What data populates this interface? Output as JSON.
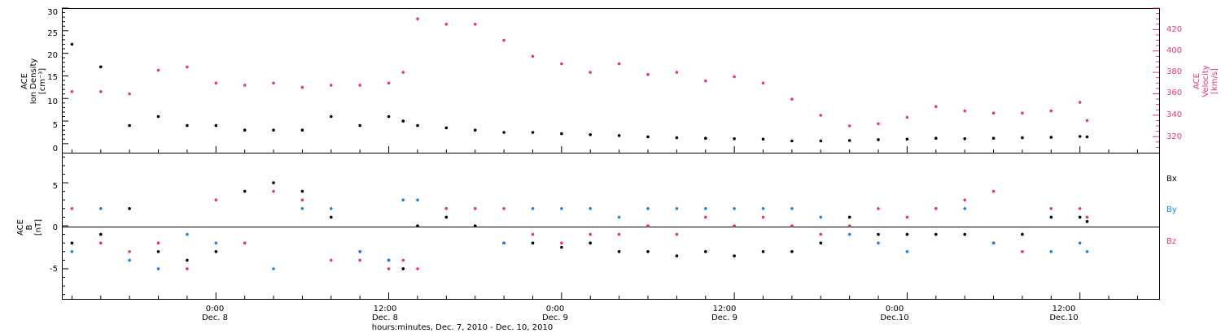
{
  "colors": {
    "black": "#000000",
    "pink": "#e8386a",
    "blue": "#1a86e0"
  },
  "x_axis": {
    "ticks": [
      {
        "time": "0:00",
        "date": "Dec. 8",
        "hours": 24
      },
      {
        "time": "12:00",
        "date": "Dec. 8",
        "hours": 36
      },
      {
        "time": "0:00",
        "date": "Dec. 9",
        "hours": 48
      },
      {
        "time": "12:00",
        "date": "Dec. 9",
        "hours": 60
      },
      {
        "time": "0:00",
        "date": "Dec.10",
        "hours": 72
      },
      {
        "time": "12:00",
        "date": "Dec.10",
        "hours": 84
      }
    ],
    "title": "hours:minutes, Dec. 7, 2010 - Dec. 10, 2010",
    "range_hours": [
      13.3,
      89.5
    ]
  },
  "panel1": {
    "left_label": [
      "ACE",
      "Ion Density",
      "[cm⁻³]"
    ],
    "right_label": [
      "ACE",
      "Velocity",
      "[km/s]"
    ],
    "left_ticks": [
      "30",
      "25",
      "20",
      "15",
      "10",
      "5",
      "0"
    ],
    "right_ticks": [
      "420",
      "400",
      "380",
      "360",
      "340",
      "320"
    ]
  },
  "panel2": {
    "left_label": [
      "ACE",
      "B",
      "[nT]"
    ],
    "left_ticks": [
      "5",
      "0",
      "-5"
    ],
    "legend": [
      "Bx",
      "By",
      "Bz"
    ]
  },
  "chart_data": {
    "type": "scatter",
    "x_label": "hours:minutes, Dec. 7, 2010 - Dec. 10, 2010",
    "x_units": "hours since Dec. 7, 2010 00:00",
    "x": [
      14,
      16,
      18,
      20,
      22,
      24,
      26,
      28,
      30,
      32,
      34,
      36,
      37,
      38,
      40,
      42,
      44,
      46,
      48,
      50,
      52,
      54,
      56,
      58,
      60,
      62,
      64,
      66,
      68,
      70,
      72,
      74,
      76,
      78,
      80,
      82,
      84,
      84.5
    ],
    "panels": [
      {
        "ylabel": "ACE Ion Density [cm⁻³]",
        "ylim": [
          -2,
          30
        ],
        "y2label": "ACE Velocity [km/s]",
        "y2lim": [
          305,
          440
        ],
        "series": [
          {
            "name": "Ion Density",
            "axis": "left",
            "color": "#000000",
            "values": [
              22,
              17,
              4,
              6,
              4,
              4,
              3,
              3,
              3,
              6,
              4,
              6,
              5,
              4,
              3.5,
              3,
              2.5,
              2.5,
              2.2,
              2,
              1.8,
              1.5,
              1.3,
              1.2,
              1.1,
              1,
              0.6,
              0.6,
              0.7,
              0.9,
              1,
              1.2,
              1.1,
              1.2,
              1.3,
              1.4,
              1.6,
              1.5
            ]
          },
          {
            "name": "Velocity",
            "axis": "right",
            "color": "#e8386a",
            "values": [
              362,
              362,
              360,
              382,
              385,
              370,
              368,
              370,
              366,
              368,
              368,
              370,
              380,
              430,
              425,
              425,
              410,
              395,
              388,
              380,
              388,
              378,
              380,
              372,
              376,
              370,
              355,
              340,
              330,
              332,
              338,
              348,
              344,
              342,
              342,
              344,
              352,
              335
            ]
          }
        ]
      },
      {
        "ylabel": "ACE B [nT]",
        "ylim": [
          -8.5,
          8.5
        ],
        "series": [
          {
            "name": "Bx",
            "color": "#000000",
            "values": [
              -2,
              -1,
              2,
              -3,
              -4,
              -3,
              4,
              5,
              4,
              1,
              -3,
              -4,
              -5,
              0,
              1,
              0,
              -2,
              -2,
              -2.5,
              -2,
              -3,
              -3,
              -3.5,
              -3,
              -3.5,
              -3,
              -3,
              -2,
              1,
              -1,
              -1,
              -1,
              -1,
              -2,
              -1,
              1,
              1,
              0.5
            ]
          },
          {
            "name": "By",
            "color": "#1a86e0",
            "values": [
              -3,
              2,
              -4,
              -5,
              -1,
              -2,
              -2,
              -5,
              2,
              2,
              -3,
              -4,
              3,
              3,
              2,
              2,
              -2,
              2,
              2,
              2,
              1,
              2,
              2,
              2,
              2,
              2,
              2,
              1,
              -1,
              -2,
              -3,
              2,
              2,
              -2,
              -3,
              -3,
              -2,
              -3
            ]
          },
          {
            "name": "Bz",
            "color": "#e8386a",
            "values": [
              2,
              -2,
              -3,
              -2,
              -5,
              3,
              -2,
              4,
              3,
              -4,
              -4,
              -5,
              -4,
              -5,
              2,
              2,
              2,
              -1,
              -2,
              -1,
              -1,
              0,
              -1,
              1,
              0,
              1,
              0,
              -1,
              0,
              2,
              1,
              2,
              3,
              4,
              -3,
              2,
              2,
              1
            ]
          }
        ]
      }
    ]
  }
}
